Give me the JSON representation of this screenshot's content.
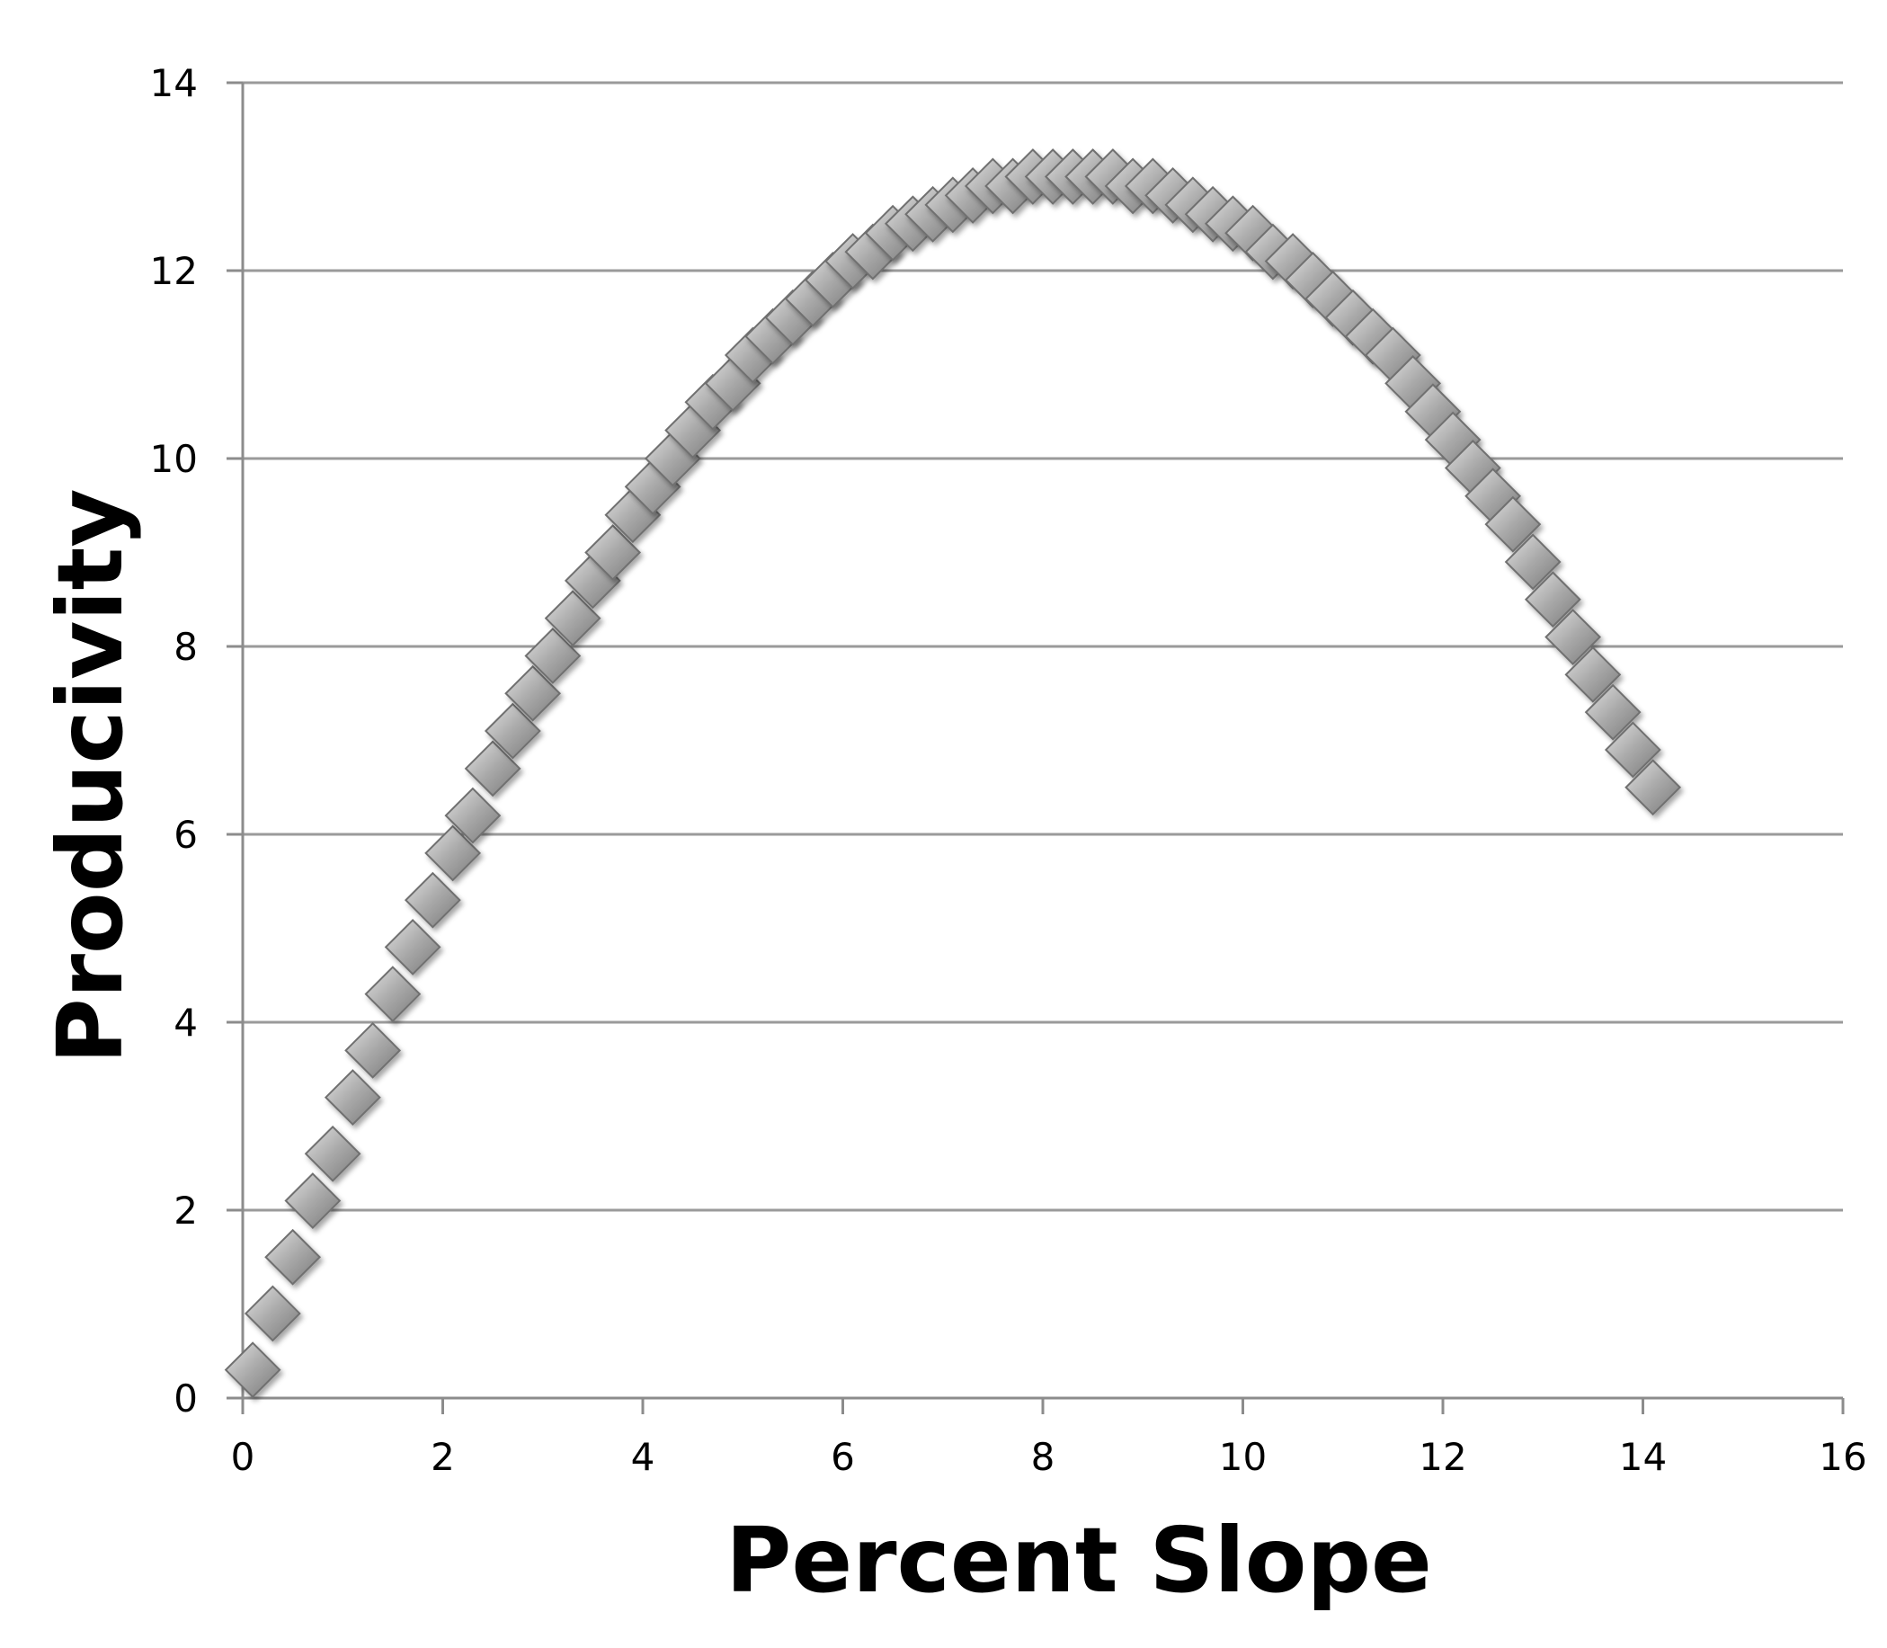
{
  "chart_data": {
    "type": "scatter",
    "title": "",
    "xlabel": "Percent Slope",
    "ylabel": "Producivity",
    "xlim": [
      0,
      16
    ],
    "ylim": [
      0,
      14
    ],
    "x_ticks": [
      0,
      2,
      4,
      6,
      8,
      10,
      12,
      14,
      16
    ],
    "y_ticks": [
      0,
      2,
      4,
      6,
      8,
      10,
      12,
      14
    ],
    "grid": "horizontal",
    "legend": "none",
    "marker": "diamond",
    "marker_color": "#a6a6a6",
    "series": [
      {
        "points": [
          [
            0.1,
            0.3
          ],
          [
            0.3,
            0.9
          ],
          [
            0.5,
            1.5
          ],
          [
            0.7,
            2.1
          ],
          [
            0.9,
            2.6
          ],
          [
            1.1,
            3.2
          ],
          [
            1.3,
            3.7
          ],
          [
            1.5,
            4.3
          ],
          [
            1.7,
            4.8
          ],
          [
            1.9,
            5.3
          ],
          [
            2.1,
            5.8
          ],
          [
            2.3,
            6.2
          ],
          [
            2.5,
            6.7
          ],
          [
            2.7,
            7.1
          ],
          [
            2.9,
            7.5
          ],
          [
            3.1,
            7.9
          ],
          [
            3.3,
            8.3
          ],
          [
            3.5,
            8.7
          ],
          [
            3.7,
            9.0
          ],
          [
            3.9,
            9.4
          ],
          [
            4.1,
            9.7
          ],
          [
            4.3,
            10.0
          ],
          [
            4.5,
            10.3
          ],
          [
            4.7,
            10.6
          ],
          [
            4.9,
            10.8
          ],
          [
            5.1,
            11.1
          ],
          [
            5.3,
            11.3
          ],
          [
            5.5,
            11.5
          ],
          [
            5.7,
            11.7
          ],
          [
            5.9,
            11.9
          ],
          [
            6.1,
            12.1
          ],
          [
            6.3,
            12.2
          ],
          [
            6.5,
            12.4
          ],
          [
            6.7,
            12.5
          ],
          [
            6.9,
            12.6
          ],
          [
            7.1,
            12.7
          ],
          [
            7.3,
            12.8
          ],
          [
            7.5,
            12.9
          ],
          [
            7.7,
            12.9
          ],
          [
            7.9,
            13.0
          ],
          [
            8.1,
            13.0
          ],
          [
            8.3,
            13.0
          ],
          [
            8.5,
            13.0
          ],
          [
            8.7,
            13.0
          ],
          [
            8.9,
            12.9
          ],
          [
            9.1,
            12.9
          ],
          [
            9.3,
            12.8
          ],
          [
            9.5,
            12.7
          ],
          [
            9.7,
            12.6
          ],
          [
            9.9,
            12.5
          ],
          [
            10.1,
            12.4
          ],
          [
            10.3,
            12.2
          ],
          [
            10.5,
            12.1
          ],
          [
            10.7,
            11.9
          ],
          [
            10.9,
            11.7
          ],
          [
            11.1,
            11.5
          ],
          [
            11.3,
            11.3
          ],
          [
            11.5,
            11.1
          ],
          [
            11.7,
            10.8
          ],
          [
            11.9,
            10.5
          ],
          [
            12.1,
            10.2
          ],
          [
            12.3,
            9.9
          ],
          [
            12.5,
            9.6
          ],
          [
            12.7,
            9.3
          ],
          [
            12.9,
            8.9
          ],
          [
            13.1,
            8.5
          ],
          [
            13.3,
            8.1
          ],
          [
            13.5,
            7.7
          ],
          [
            13.7,
            7.3
          ],
          [
            13.9,
            6.9
          ],
          [
            14.1,
            6.5
          ]
        ]
      }
    ]
  }
}
